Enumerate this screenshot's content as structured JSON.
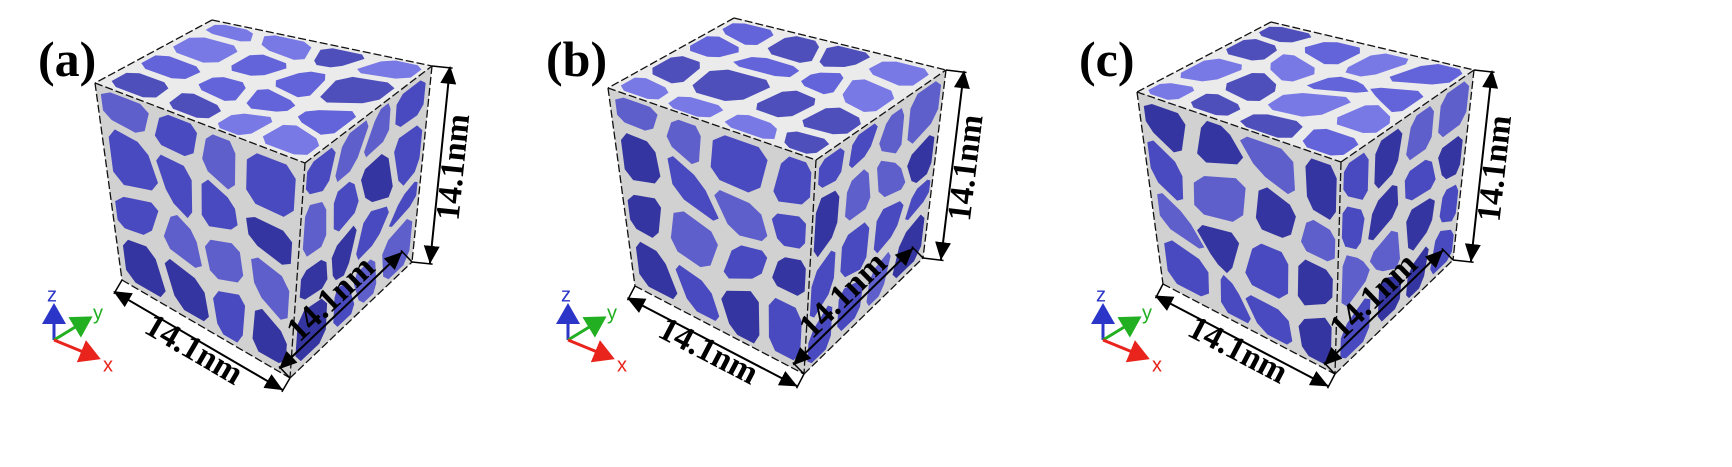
{
  "panels": [
    {
      "label": "(a)",
      "dims": {
        "x": "14.1nm",
        "y": "14.1nm",
        "z": "14.1nm"
      }
    },
    {
      "label": "(b)",
      "dims": {
        "x": "14.1nm",
        "y": "14.1nm",
        "z": "14.1nm"
      }
    },
    {
      "label": "(c)",
      "dims": {
        "x": "14.1nm",
        "y": "14.1nm",
        "z": "14.1nm"
      }
    }
  ],
  "axis_triad": {
    "x": "x",
    "y": "y",
    "z": "z"
  },
  "colors": {
    "grain": "#5252d6",
    "grain_dark": "#3c3cb4",
    "grain_light": "#6a6ae4",
    "boundary": "#e9e9e9",
    "axis_x": "#e8241c",
    "axis_y": "#22b022",
    "axis_z": "#2b35c8"
  }
}
